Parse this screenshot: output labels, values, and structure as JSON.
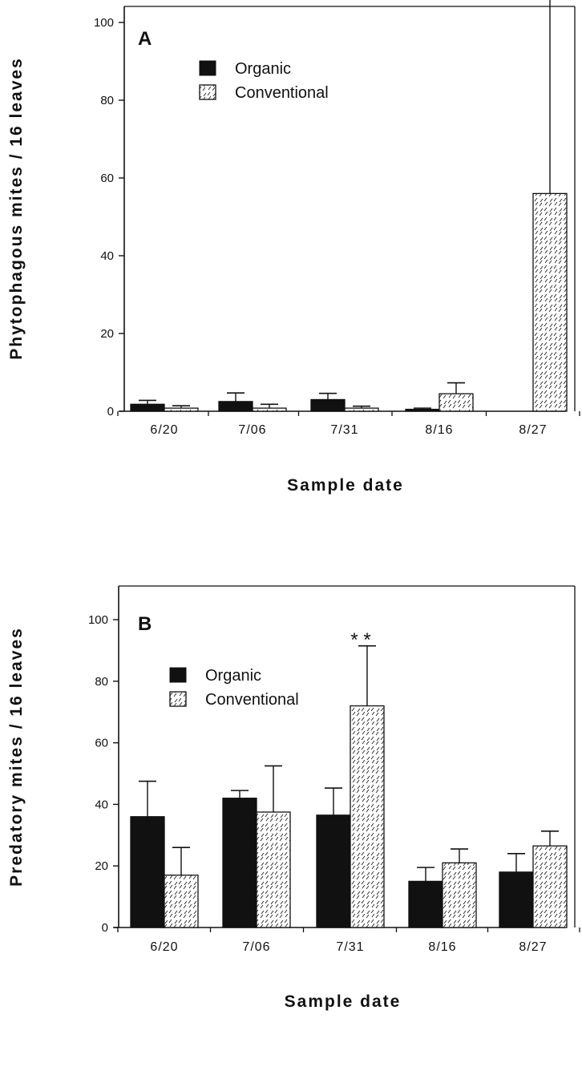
{
  "chart_data": [
    {
      "type": "bar",
      "panel_label": "A",
      "categories": [
        "6/20",
        "7/06",
        "7/31",
        "8/16",
        "8/27"
      ],
      "series": [
        {
          "name": "Organic",
          "values": [
            1.8,
            2.5,
            3.0,
            0.5,
            0
          ],
          "errors": [
            1.0,
            2.2,
            1.6,
            0.3,
            0
          ],
          "color": "#111111",
          "pattern": "solid"
        },
        {
          "name": "Conventional",
          "values": [
            0.8,
            0.8,
            0.8,
            4.5,
            56
          ],
          "errors": [
            0.6,
            1.0,
            0.5,
            2.8,
            52
          ],
          "color": "#ffffff",
          "pattern": "dashed-hatch"
        }
      ],
      "xlabel": "Sample  date",
      "ylabel": "Phytophagous  mites  /  16  leaves",
      "ylim": [
        0,
        112
      ],
      "yticks": [
        "0",
        "20",
        "40",
        "60",
        "80",
        "100"
      ],
      "annotations": [],
      "legend_position": "top-left"
    },
    {
      "type": "bar",
      "panel_label": "B",
      "categories": [
        "6/20",
        "7/06",
        "7/31",
        "8/16",
        "8/27"
      ],
      "series": [
        {
          "name": "Organic",
          "values": [
            36,
            42,
            36.5,
            15,
            18
          ],
          "errors": [
            11.5,
            2.5,
            8.8,
            4.5,
            6
          ],
          "color": "#111111",
          "pattern": "solid"
        },
        {
          "name": "Conventional",
          "values": [
            17,
            37.5,
            72,
            21,
            26.5
          ],
          "errors": [
            9,
            15,
            19.5,
            4.5,
            4.8
          ],
          "color": "#ffffff",
          "pattern": "dashed-hatch"
        }
      ],
      "xlabel": "Sample  date",
      "ylabel": "Predatory  mites  /  16  leaves",
      "ylim": [
        0,
        114
      ],
      "yticks": [
        "0",
        "20",
        "40",
        "60",
        "80",
        "100"
      ],
      "annotations": [
        {
          "text": "*  *",
          "category": "7/31"
        }
      ],
      "legend_position": "top-left"
    }
  ]
}
